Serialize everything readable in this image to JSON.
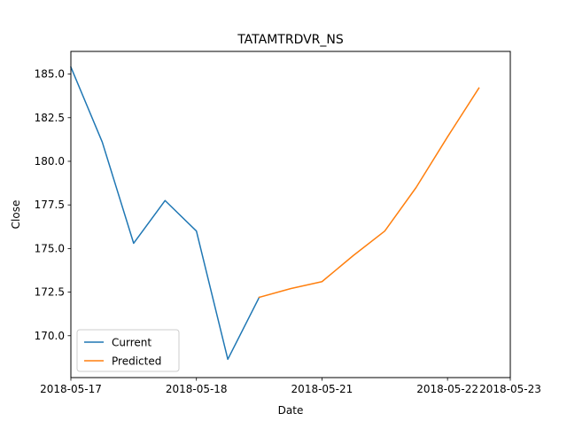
{
  "chart_data": {
    "type": "line",
    "title": "TATAMTRDVR_NS",
    "xlabel": "Date",
    "ylabel": "Close",
    "xlim": [
      0,
      7
    ],
    "ylim": [
      167.6,
      186.3
    ],
    "x_ticks": [
      {
        "value": 0,
        "label": "2018-05-17"
      },
      {
        "value": 2,
        "label": "2018-05-18"
      },
      {
        "value": 4,
        "label": "2018-05-21"
      },
      {
        "value": 6,
        "label": "2018-05-22"
      },
      {
        "value": 7,
        "label": "2018-05-23"
      }
    ],
    "y_ticks": [
      {
        "value": 170.0,
        "label": "170.0"
      },
      {
        "value": 172.5,
        "label": "172.5"
      },
      {
        "value": 175.0,
        "label": "175.0"
      },
      {
        "value": 177.5,
        "label": "177.5"
      },
      {
        "value": 180.0,
        "label": "180.0"
      },
      {
        "value": 182.5,
        "label": "182.5"
      },
      {
        "value": 185.0,
        "label": "185.0"
      }
    ],
    "grid": false,
    "legend": "lower-left",
    "series": [
      {
        "name": "Current",
        "color": "#1f77b4",
        "points": [
          {
            "x": 0.0,
            "y": 185.4
          },
          {
            "x": 0.5,
            "y": 181.1
          },
          {
            "x": 1.0,
            "y": 175.3
          },
          {
            "x": 1.5,
            "y": 177.75
          },
          {
            "x": 2.0,
            "y": 176.0
          },
          {
            "x": 2.5,
            "y": 168.65
          },
          {
            "x": 3.0,
            "y": 172.2
          }
        ]
      },
      {
        "name": "Predicted",
        "color": "#ff7f0e",
        "points": [
          {
            "x": 3.0,
            "y": 172.2
          },
          {
            "x": 3.5,
            "y": 172.7
          },
          {
            "x": 4.0,
            "y": 173.1
          },
          {
            "x": 4.5,
            "y": 174.6
          },
          {
            "x": 5.0,
            "y": 176.0
          },
          {
            "x": 5.5,
            "y": 178.5
          },
          {
            "x": 6.0,
            "y": 181.4
          },
          {
            "x": 6.5,
            "y": 184.2
          }
        ]
      }
    ]
  }
}
